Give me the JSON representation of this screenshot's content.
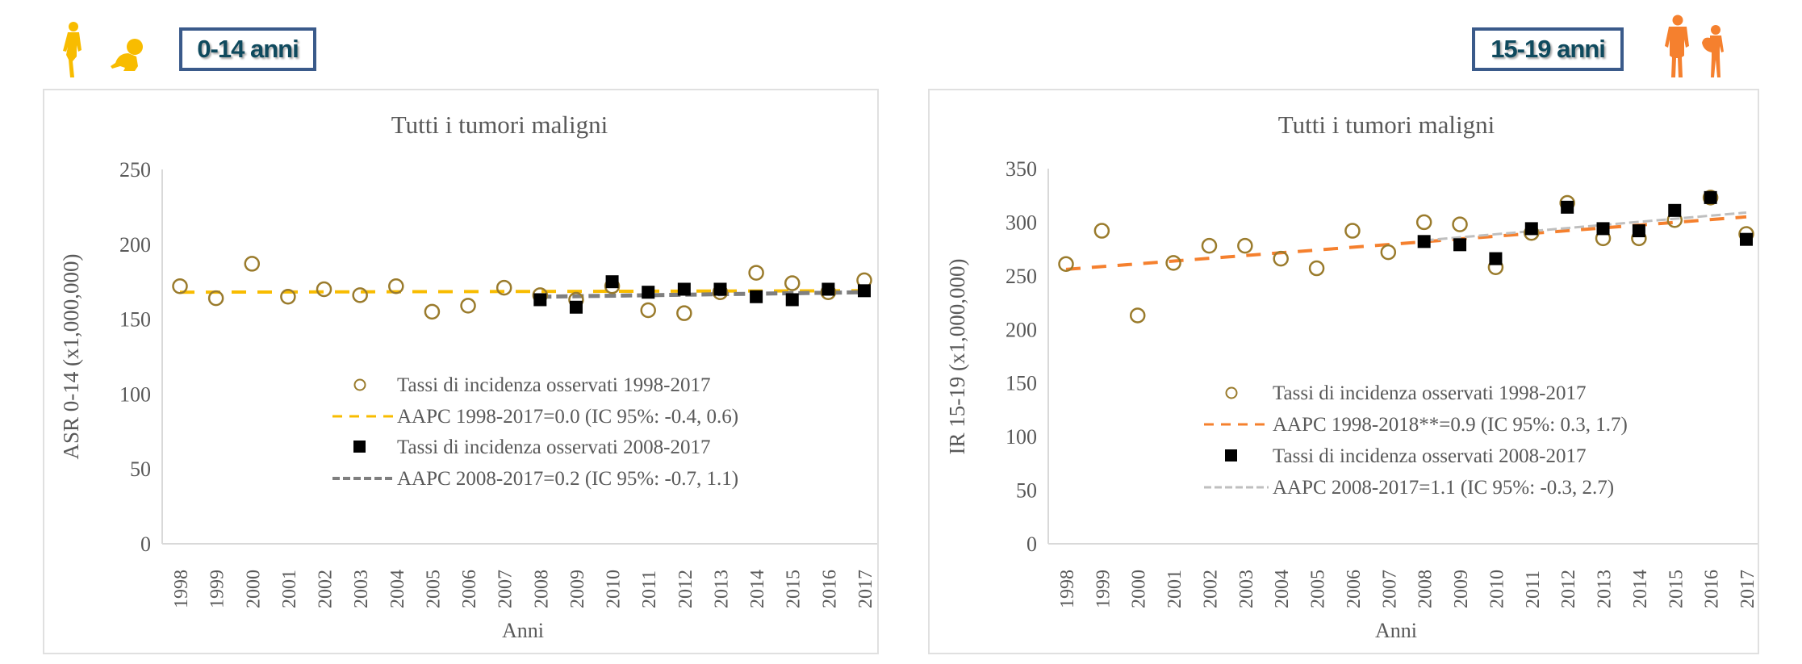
{
  "header": {
    "left_badge": "0-14 anni",
    "right_badge": "15-19 anni"
  },
  "icons": {
    "left": [
      "child-walking-icon",
      "baby-crawling-icon"
    ],
    "right": [
      "teen-boy-icon",
      "teen-girl-icon"
    ],
    "left_color": "#f8bc00",
    "right_color": "#f5802e"
  },
  "chart_data": [
    {
      "type": "scatter",
      "title": "Tutti i tumori maligni",
      "xlabel": "Anni",
      "ylabel": "ASR 0-14  (x1,000,000)",
      "ylim": [
        0,
        250
      ],
      "yticks": [
        "0",
        "50",
        "100",
        "150",
        "200",
        "250"
      ],
      "categories": [
        "1998",
        "1999",
        "2000",
        "2001",
        "2002",
        "2003",
        "2004",
        "2005",
        "2006",
        "2007",
        "2008",
        "2009",
        "2010",
        "2011",
        "2012",
        "2013",
        "2014",
        "2015",
        "2016",
        "2017"
      ],
      "grid": false,
      "legend_position": "bottom-right",
      "series": [
        {
          "name": "Tassi di incidenza osservati 1998-2017",
          "kind": "open-circle",
          "color": "#9a7b2c",
          "values": [
            172,
            164,
            187,
            165,
            170,
            166,
            172,
            155,
            159,
            171,
            166,
            163,
            172,
            156,
            154,
            168,
            181,
            174,
            168,
            176
          ]
        },
        {
          "name": "AAPC 1998-2017=0.0 (IC 95%: -0.4, 0.6)",
          "kind": "dashed-line",
          "color": "#f8bc00",
          "x": [
            "1998",
            "2017"
          ],
          "values": [
            168,
            169
          ]
        },
        {
          "name": "Tassi di incidenza osservati 2008-2017",
          "kind": "filled-square",
          "color": "#000000",
          "x": [
            "2008",
            "2009",
            "2010",
            "2011",
            "2012",
            "2013",
            "2014",
            "2015",
            "2016",
            "2017"
          ],
          "values": [
            163,
            158,
            175,
            168,
            170,
            170,
            165,
            163,
            170,
            169
          ]
        },
        {
          "name": "AAPC 2008-2017=0.2 (IC 95%: -0.7, 1.1)",
          "kind": "dashed-line",
          "color": "#7f7f7f",
          "x": [
            "2008",
            "2017"
          ],
          "values": [
            165,
            168
          ]
        }
      ]
    },
    {
      "type": "scatter",
      "title": "Tutti i tumori maligni",
      "xlabel": "Anni",
      "ylabel": "IR 15-19 (x1,000,000)",
      "ylim": [
        0,
        350
      ],
      "yticks": [
        "0",
        "50",
        "100",
        "150",
        "200",
        "250",
        "300",
        "350"
      ],
      "categories": [
        "1998",
        "1999",
        "2000",
        "2001",
        "2002",
        "2003",
        "2004",
        "2005",
        "2006",
        "2007",
        "2008",
        "2009",
        "2010",
        "2011",
        "2012",
        "2013",
        "2014",
        "2015",
        "2016",
        "2017"
      ],
      "grid": false,
      "legend_position": "bottom-right",
      "series": [
        {
          "name": "Tassi di incidenza osservati 1998-2017",
          "kind": "open-circle",
          "color": "#9a7b2c",
          "values": [
            261,
            292,
            213,
            262,
            278,
            278,
            266,
            257,
            292,
            272,
            300,
            298,
            258,
            290,
            318,
            285,
            285,
            302,
            323,
            289
          ]
        },
        {
          "name": "AAPC 1998-2018**=0.9 (IC 95%: 0.3, 1.7)",
          "kind": "dashed-line",
          "color": "#f5802e",
          "x": [
            "1998",
            "2017"
          ],
          "values": [
            256,
            305
          ]
        },
        {
          "name": "Tassi di incidenza osservati 2008-2017",
          "kind": "filled-square",
          "color": "#000000",
          "x": [
            "2008",
            "2009",
            "2010",
            "2011",
            "2012",
            "2013",
            "2014",
            "2015",
            "2016",
            "2017"
          ],
          "values": [
            282,
            279,
            266,
            294,
            314,
            294,
            292,
            311,
            323,
            284
          ]
        },
        {
          "name": "AAPC 2008-2017=1.1 (IC 95%: -0.3, 2.7)",
          "kind": "dashed-line",
          "color": "#bfbfbf",
          "x": [
            "2008",
            "2017"
          ],
          "values": [
            283,
            309
          ]
        }
      ]
    }
  ]
}
